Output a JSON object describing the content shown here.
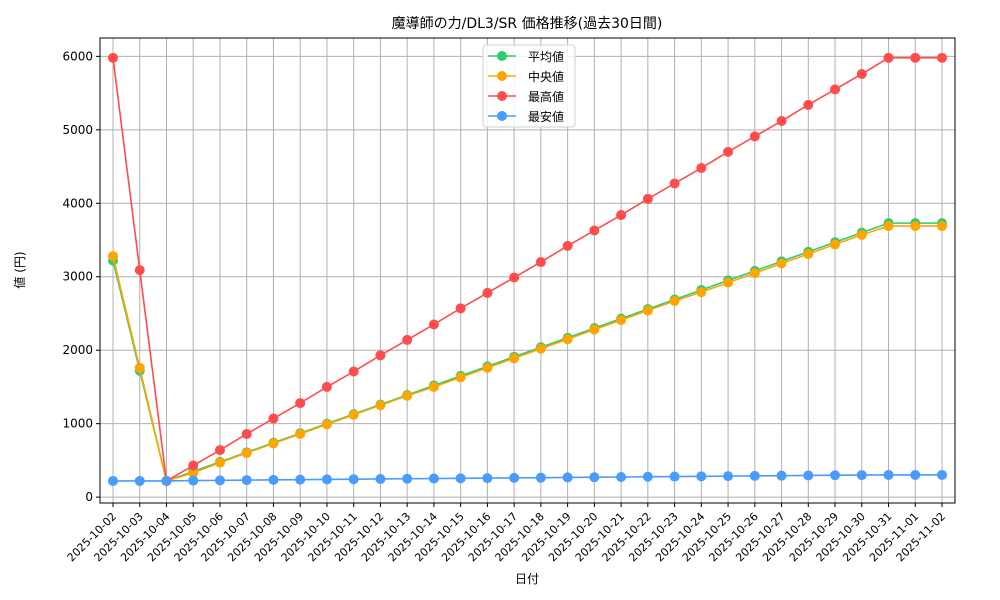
{
  "chart_data": {
    "type": "line",
    "title": "魔導師の力/DL3/SR 価格推移(過去30日間)",
    "xlabel": "日付",
    "ylabel": "値 (円)",
    "ylim": [
      -80,
      6250
    ],
    "yticks": [
      0,
      1000,
      2000,
      3000,
      4000,
      5000,
      6000
    ],
    "grid": true,
    "legend_position": "upper-center",
    "x": [
      "2025-10-02",
      "2025-10-03",
      "2025-10-04",
      "2025-10-05",
      "2025-10-06",
      "2025-10-07",
      "2025-10-08",
      "2025-10-09",
      "2025-10-10",
      "2025-10-11",
      "2025-10-12",
      "2025-10-13",
      "2025-10-14",
      "2025-10-15",
      "2025-10-16",
      "2025-10-17",
      "2025-10-18",
      "2025-10-19",
      "2025-10-20",
      "2025-10-21",
      "2025-10-22",
      "2025-10-23",
      "2025-10-24",
      "2025-10-25",
      "2025-10-26",
      "2025-10-27",
      "2025-10-28",
      "2025-10-29",
      "2025-10-30",
      "2025-10-31",
      "2025-11-01",
      "2025-11-02"
    ],
    "series": [
      {
        "name": "平均値",
        "color": "#2ecc71",
        "values": [
          3220,
          1720,
          220,
          350,
          480,
          610,
          740,
          870,
          1000,
          1130,
          1260,
          1390,
          1520,
          1650,
          1780,
          1910,
          2040,
          2170,
          2300,
          2430,
          2560,
          2690,
          2820,
          2950,
          3080,
          3210,
          3340,
          3470,
          3600,
          3730,
          3730,
          3730
        ]
      },
      {
        "name": "中央値",
        "color": "#ffa500",
        "values": [
          3280,
          1760,
          220,
          330,
          470,
          600,
          730,
          860,
          990,
          1120,
          1250,
          1380,
          1500,
          1630,
          1760,
          1890,
          2020,
          2150,
          2280,
          2410,
          2540,
          2670,
          2790,
          2920,
          3050,
          3180,
          3310,
          3440,
          3570,
          3690,
          3690,
          3690
        ]
      },
      {
        "name": "最高値",
        "color": "#ff4c4c",
        "values": [
          5980,
          3090,
          220,
          430,
          640,
          860,
          1070,
          1280,
          1500,
          1710,
          1930,
          2140,
          2350,
          2570,
          2780,
          2990,
          3200,
          3420,
          3630,
          3840,
          4060,
          4270,
          4480,
          4700,
          4910,
          5120,
          5340,
          5550,
          5760,
          5980,
          5980,
          5980
        ]
      },
      {
        "name": "最安値",
        "color": "#4a9bff",
        "values": [
          220,
          220,
          220,
          225,
          228,
          232,
          235,
          238,
          241,
          244,
          247,
          250,
          253,
          256,
          259,
          262,
          265,
          268,
          271,
          274,
          277,
          280,
          283,
          286,
          289,
          292,
          295,
          298,
          300,
          302,
          302,
          302
        ]
      }
    ]
  }
}
